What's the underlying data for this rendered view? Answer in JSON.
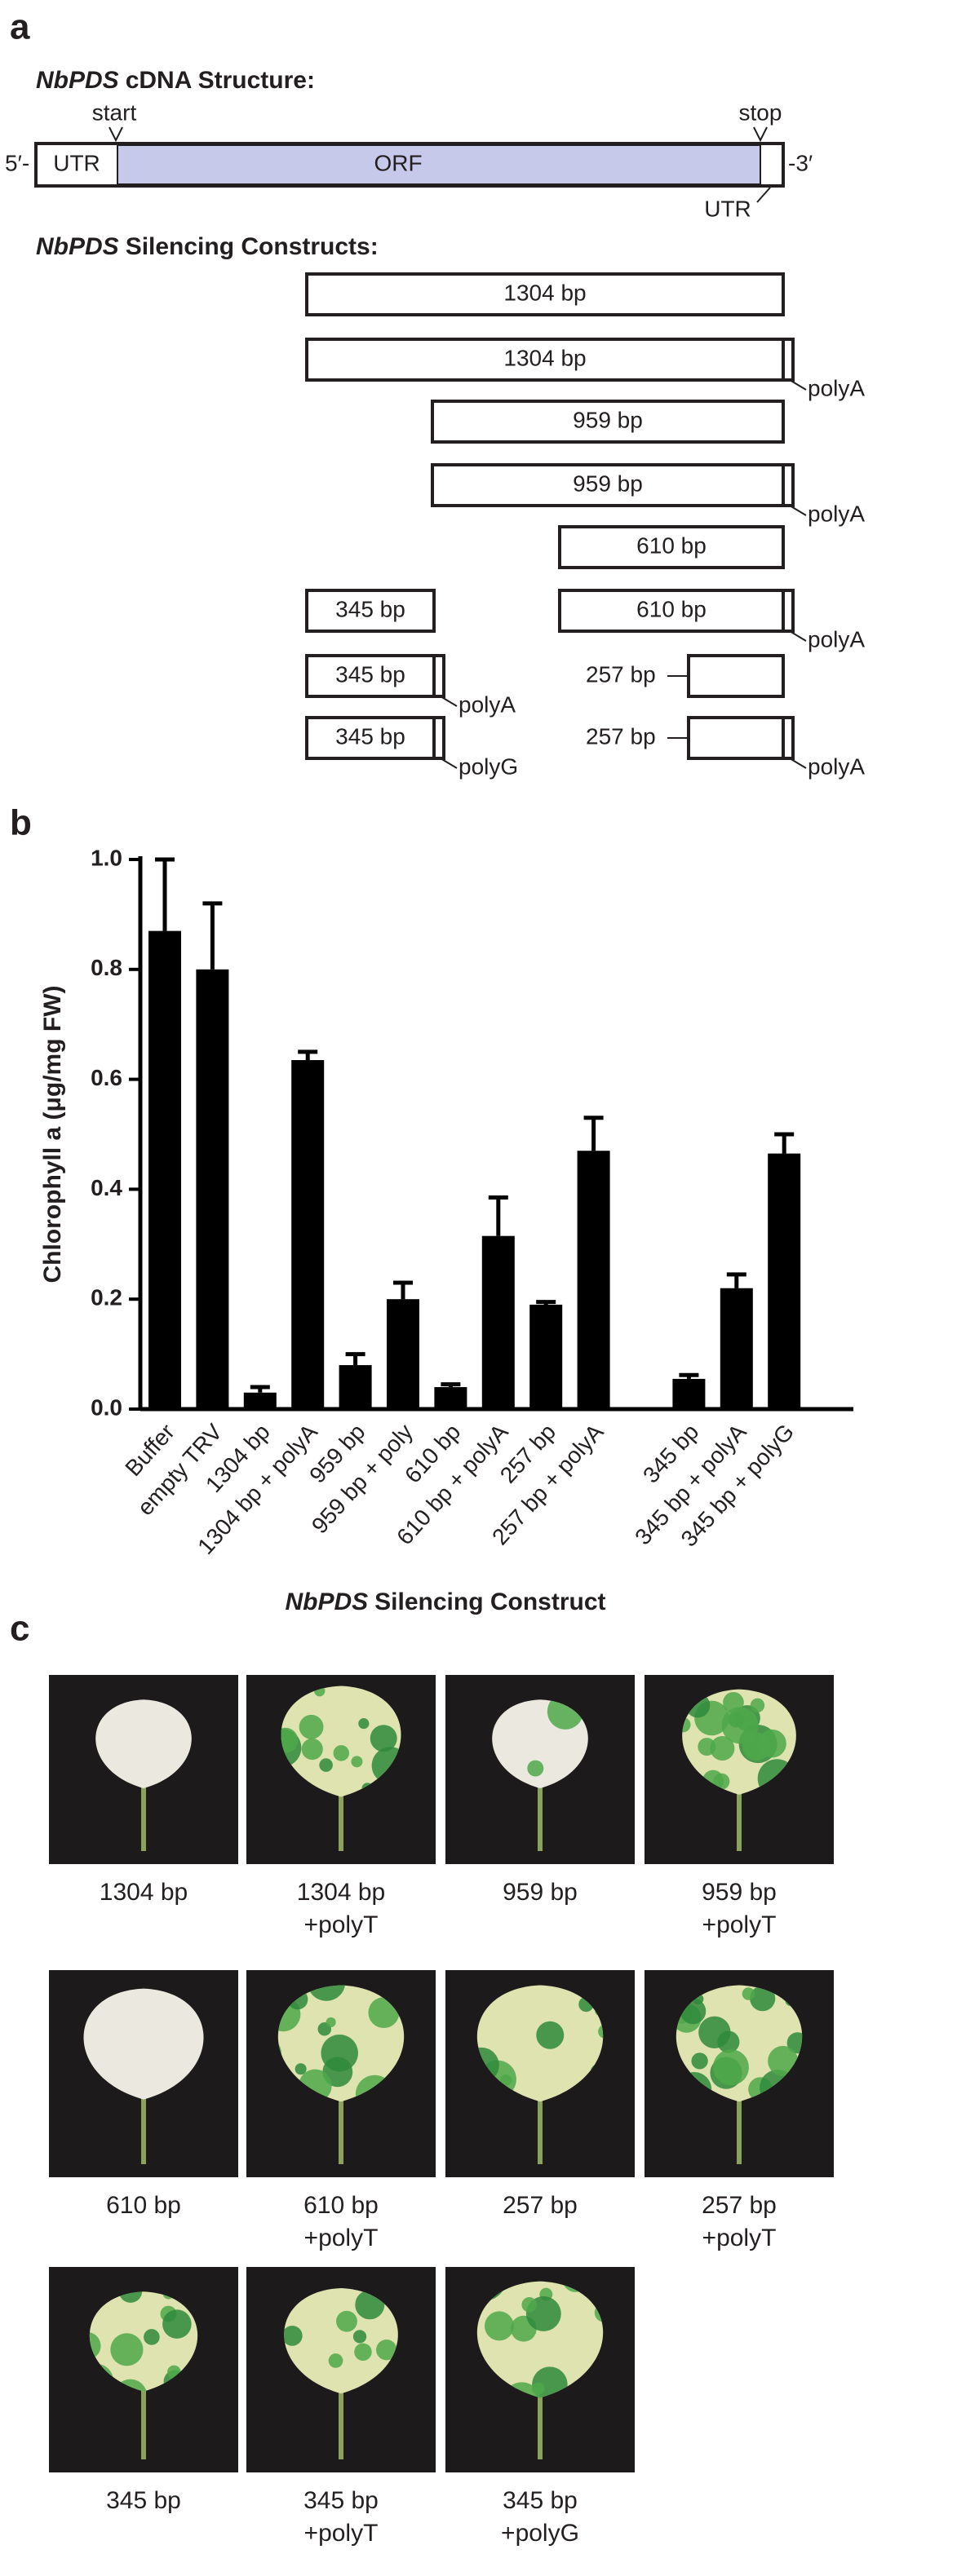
{
  "panel_a": {
    "letter": "a",
    "cdna_heading": {
      "italic": "NbPDS",
      "rest": "cDNA Structure:"
    },
    "five_prime": "5′-",
    "three_prime": "-3′",
    "utr_left": "UTR",
    "orf": "ORF",
    "utr_right": "UTR",
    "start": "start",
    "stop": "stop",
    "constructs_heading": {
      "italic": "NbPDS",
      "rest": "Silencing Constructs:"
    },
    "constructs": [
      {
        "label": "1304 bp"
      },
      {
        "label": "1304 bp",
        "tail": "polyA"
      },
      {
        "label": "959 bp"
      },
      {
        "label": "959 bp",
        "tail": "polyA"
      },
      {
        "label": "610 bp"
      },
      {
        "label": "345 bp"
      },
      {
        "label": "610 bp",
        "tail": "polyA"
      },
      {
        "label": "345 bp",
        "tail": "polyA"
      },
      {
        "label": "257 bp"
      },
      {
        "label": "345 bp",
        "tail": "polyG"
      },
      {
        "label": "257 bp",
        "tail": "polyA"
      }
    ]
  },
  "panel_b": {
    "letter": "b"
  },
  "chart_data": {
    "type": "bar",
    "ylabel": "Chlorophyll a (μg/mg FW)",
    "xlabel": {
      "italic": "NbPDS",
      "rest": "Silencing Construct"
    },
    "categories": [
      "Buffer",
      "empty TRV",
      "1304 bp",
      "1304 bp + polyA",
      "959 bp",
      "959 bp + poly",
      "610 bp",
      "610 bp + polyA",
      "257 bp",
      "257 bp + polyA",
      null,
      "345 bp",
      "345 bp + polyA",
      "345 bp + polyG"
    ],
    "values": [
      0.87,
      0.8,
      0.03,
      0.635,
      0.08,
      0.2,
      0.04,
      0.315,
      0.19,
      0.47,
      null,
      0.055,
      0.22,
      0.465
    ],
    "errors": [
      0.13,
      0.12,
      0.01,
      0.015,
      0.02,
      0.03,
      0.005,
      0.07,
      0.005,
      0.06,
      null,
      0.007,
      0.025,
      0.035
    ],
    "color": "#000000",
    "ylim": [
      0,
      1.0
    ],
    "yticks": [
      {
        "value": 0,
        "label": "0.0"
      },
      0.2,
      0.4,
      0.6,
      0.8,
      {
        "value": 1.0,
        "label": "1.0"
      }
    ]
  },
  "panel_c": {
    "letter": "c",
    "photos": [
      {
        "caption": [
          "1304 bp"
        ]
      },
      {
        "caption": [
          "1304 bp",
          "+polyT"
        ]
      },
      {
        "caption": [
          "959 bp"
        ]
      },
      {
        "caption": [
          "959 bp",
          "+polyT"
        ]
      },
      {
        "caption": [
          "610 bp"
        ]
      },
      {
        "caption": [
          "610 bp",
          "+polyT"
        ]
      },
      {
        "caption": [
          "257 bp"
        ]
      },
      {
        "caption": [
          "257 bp",
          "+polyT"
        ]
      },
      {
        "caption": [
          "345 bp"
        ]
      },
      {
        "caption": [
          "345 bp",
          "+polyT"
        ]
      },
      {
        "caption": [
          "345 bp",
          "+polyG"
        ]
      }
    ]
  }
}
